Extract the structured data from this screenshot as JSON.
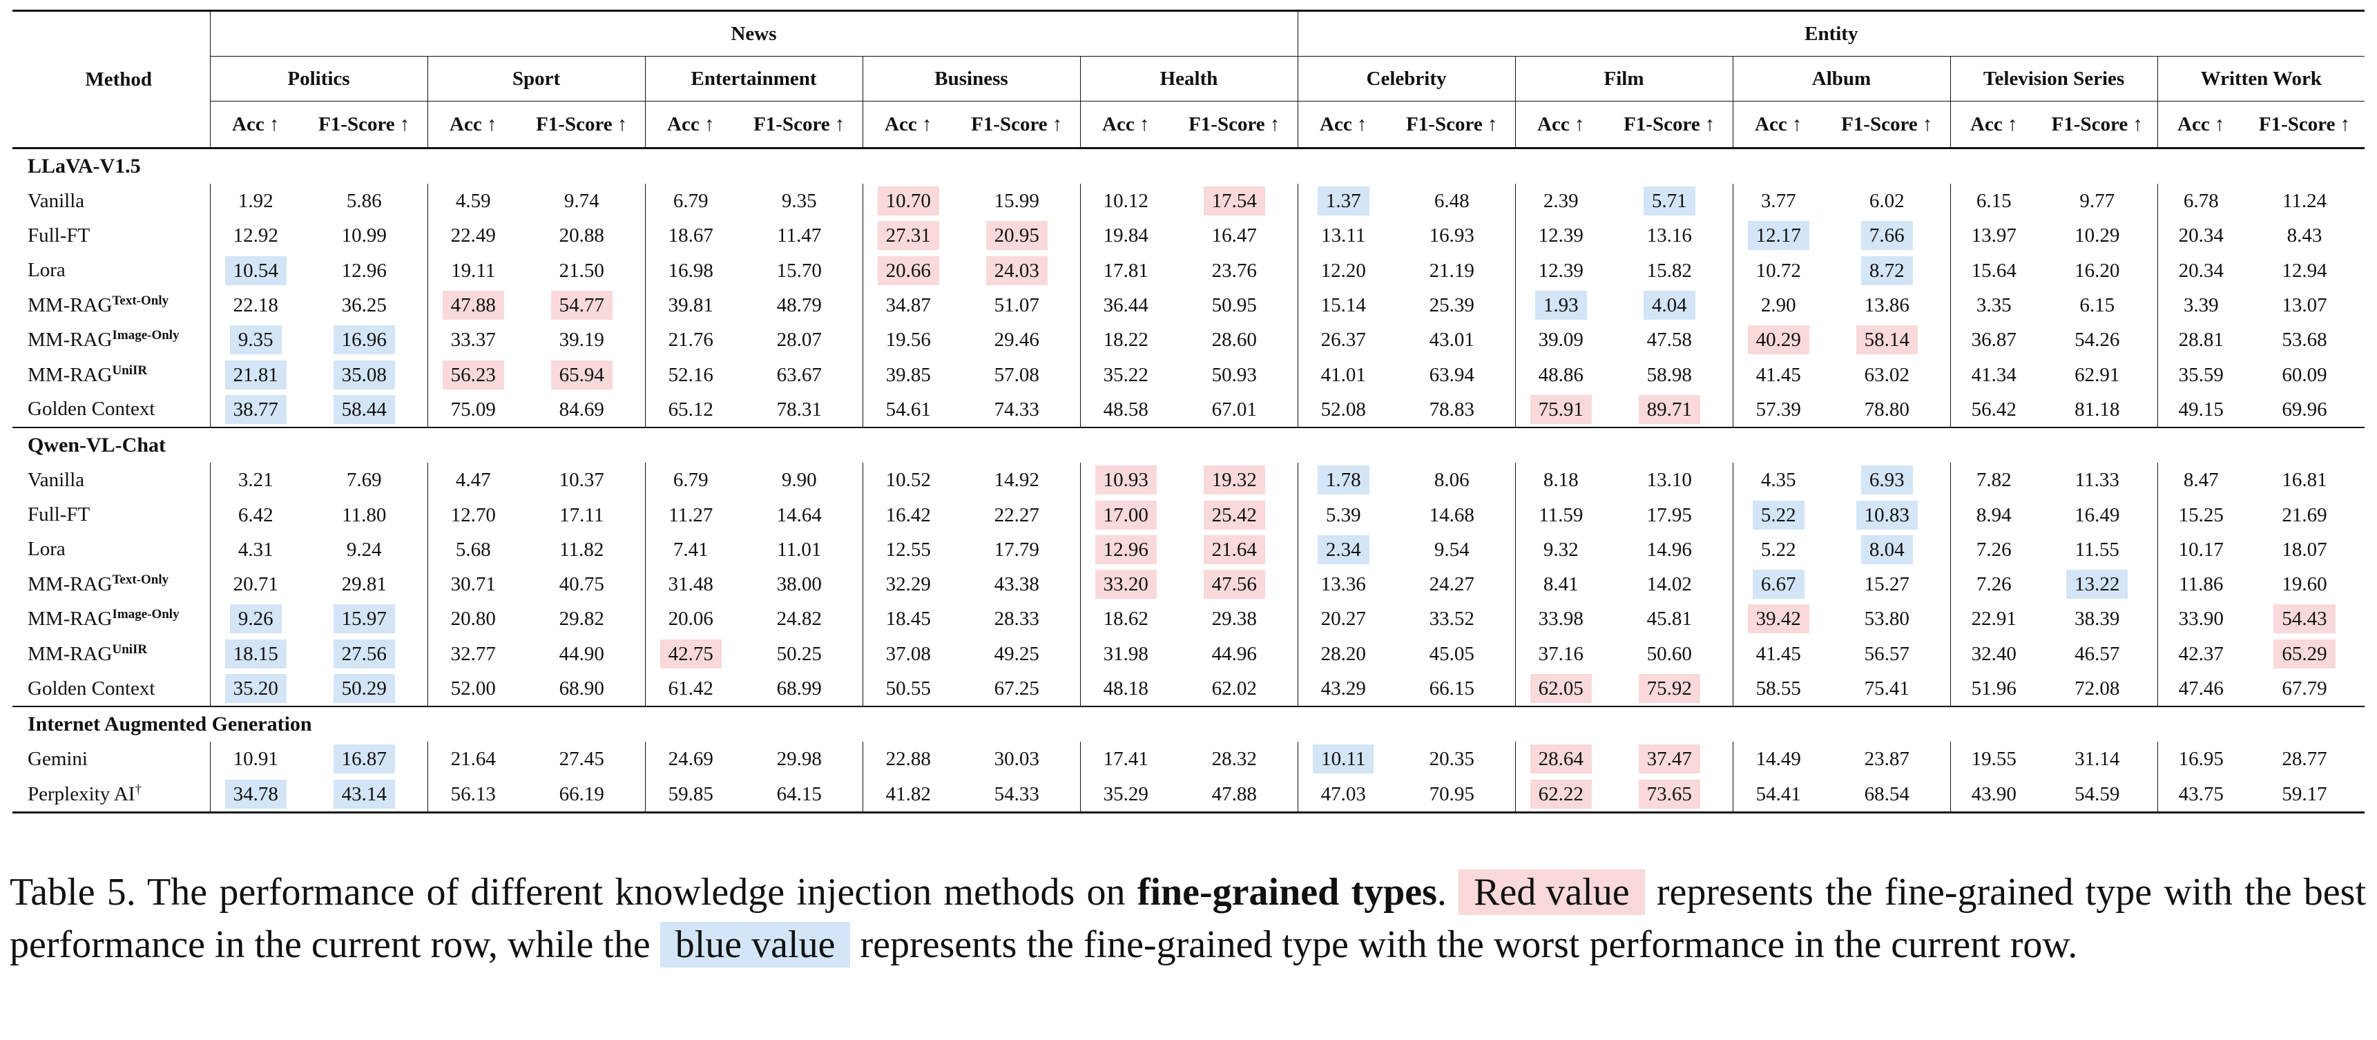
{
  "table": {
    "method_header": "Method",
    "top_groups": [
      {
        "label": "News",
        "span": 5
      },
      {
        "label": "Entity",
        "span": 5
      }
    ],
    "categories": [
      "Politics",
      "Sport",
      "Entertainment",
      "Business",
      "Health",
      "Celebrity",
      "Film",
      "Album",
      "Television Series",
      "Written Work"
    ],
    "metric_headers": [
      "Acc ↑",
      "F1-Score ↑"
    ],
    "highlight_colors": {
      "red": "#f9d9da",
      "blue": "#d3e5f6"
    },
    "sections": [
      {
        "title": "LLaVA-V1.5",
        "rows": [
          {
            "method": "Vanilla",
            "sup": "",
            "values": [
              "1.92",
              "5.86",
              "4.59",
              "9.74",
              "6.79",
              "9.35",
              "10.70",
              "15.99",
              "10.12",
              "17.54",
              "1.37",
              "6.48",
              "2.39",
              "5.71",
              "3.77",
              "6.02",
              "6.15",
              "9.77",
              "6.78",
              "11.24"
            ],
            "hl": [
              "",
              "",
              "",
              "",
              "",
              "",
              "r",
              "",
              "",
              "r",
              "b",
              "",
              "",
              "b",
              "",
              "",
              "",
              "",
              "",
              ""
            ]
          },
          {
            "method": "Full-FT",
            "sup": "",
            "values": [
              "12.92",
              "10.99",
              "22.49",
              "20.88",
              "18.67",
              "11.47",
              "27.31",
              "20.95",
              "19.84",
              "16.47",
              "13.11",
              "16.93",
              "12.39",
              "13.16",
              "12.17",
              "7.66",
              "13.97",
              "10.29",
              "20.34",
              "8.43"
            ],
            "hl": [
              "",
              "",
              "",
              "",
              "",
              "",
              "r",
              "r",
              "",
              "",
              "",
              "",
              "",
              "",
              "b",
              "b",
              "",
              "",
              "",
              ""
            ]
          },
          {
            "method": "Lora",
            "sup": "",
            "values": [
              "10.54",
              "12.96",
              "19.11",
              "21.50",
              "16.98",
              "15.70",
              "20.66",
              "24.03",
              "17.81",
              "23.76",
              "12.20",
              "21.19",
              "12.39",
              "15.82",
              "10.72",
              "8.72",
              "15.64",
              "16.20",
              "20.34",
              "12.94"
            ],
            "hl": [
              "b",
              "",
              "",
              "",
              "",
              "",
              "r",
              "r",
              "",
              "",
              "",
              "",
              "",
              "",
              "",
              "b",
              "",
              "",
              "",
              ""
            ]
          },
          {
            "method": "MM-RAG",
            "sup": "Text-Only",
            "values": [
              "22.18",
              "36.25",
              "47.88",
              "54.77",
              "39.81",
              "48.79",
              "34.87",
              "51.07",
              "36.44",
              "50.95",
              "15.14",
              "25.39",
              "1.93",
              "4.04",
              "2.90",
              "13.86",
              "3.35",
              "6.15",
              "3.39",
              "13.07"
            ],
            "hl": [
              "",
              "",
              "r",
              "r",
              "",
              "",
              "",
              "",
              "",
              "",
              "",
              "",
              "b",
              "b",
              "",
              "",
              "",
              "",
              "",
              ""
            ]
          },
          {
            "method": "MM-RAG",
            "sup": "Image-Only",
            "values": [
              "9.35",
              "16.96",
              "33.37",
              "39.19",
              "21.76",
              "28.07",
              "19.56",
              "29.46",
              "18.22",
              "28.60",
              "26.37",
              "43.01",
              "39.09",
              "47.58",
              "40.29",
              "58.14",
              "36.87",
              "54.26",
              "28.81",
              "53.68"
            ],
            "hl": [
              "b",
              "b",
              "",
              "",
              "",
              "",
              "",
              "",
              "",
              "",
              "",
              "",
              "",
              "",
              "r",
              "r",
              "",
              "",
              "",
              ""
            ]
          },
          {
            "method": "MM-RAG",
            "sup": "UniIR",
            "values": [
              "21.81",
              "35.08",
              "56.23",
              "65.94",
              "52.16",
              "63.67",
              "39.85",
              "57.08",
              "35.22",
              "50.93",
              "41.01",
              "63.94",
              "48.86",
              "58.98",
              "41.45",
              "63.02",
              "41.34",
              "62.91",
              "35.59",
              "60.09"
            ],
            "hl": [
              "b",
              "b",
              "r",
              "r",
              "",
              "",
              "",
              "",
              "",
              "",
              "",
              "",
              "",
              "",
              "",
              "",
              "",
              "",
              "",
              ""
            ]
          },
          {
            "method": "Golden Context",
            "sup": "",
            "values": [
              "38.77",
              "58.44",
              "75.09",
              "84.69",
              "65.12",
              "78.31",
              "54.61",
              "74.33",
              "48.58",
              "67.01",
              "52.08",
              "78.83",
              "75.91",
              "89.71",
              "57.39",
              "78.80",
              "56.42",
              "81.18",
              "49.15",
              "69.96"
            ],
            "hl": [
              "b",
              "b",
              "",
              "",
              "",
              "",
              "",
              "",
              "",
              "",
              "",
              "",
              "r",
              "r",
              "",
              "",
              "",
              "",
              "",
              ""
            ]
          }
        ]
      },
      {
        "title": "Qwen-VL-Chat",
        "rows": [
          {
            "method": "Vanilla",
            "sup": "",
            "values": [
              "3.21",
              "7.69",
              "4.47",
              "10.37",
              "6.79",
              "9.90",
              "10.52",
              "14.92",
              "10.93",
              "19.32",
              "1.78",
              "8.06",
              "8.18",
              "13.10",
              "4.35",
              "6.93",
              "7.82",
              "11.33",
              "8.47",
              "16.81"
            ],
            "hl": [
              "",
              "",
              "",
              "",
              "",
              "",
              "",
              "",
              "r",
              "r",
              "b",
              "",
              "",
              "",
              "",
              "b",
              "",
              "",
              "",
              ""
            ]
          },
          {
            "method": "Full-FT",
            "sup": "",
            "values": [
              "6.42",
              "11.80",
              "12.70",
              "17.11",
              "11.27",
              "14.64",
              "16.42",
              "22.27",
              "17.00",
              "25.42",
              "5.39",
              "14.68",
              "11.59",
              "17.95",
              "5.22",
              "10.83",
              "8.94",
              "16.49",
              "15.25",
              "21.69"
            ],
            "hl": [
              "",
              "",
              "",
              "",
              "",
              "",
              "",
              "",
              "r",
              "r",
              "",
              "",
              "",
              "",
              "b",
              "b",
              "",
              "",
              "",
              ""
            ]
          },
          {
            "method": "Lora",
            "sup": "",
            "values": [
              "4.31",
              "9.24",
              "5.68",
              "11.82",
              "7.41",
              "11.01",
              "12.55",
              "17.79",
              "12.96",
              "21.64",
              "2.34",
              "9.54",
              "9.32",
              "14.96",
              "5.22",
              "8.04",
              "7.26",
              "11.55",
              "10.17",
              "18.07"
            ],
            "hl": [
              "",
              "",
              "",
              "",
              "",
              "",
              "",
              "",
              "r",
              "r",
              "b",
              "",
              "",
              "",
              "",
              "b",
              "",
              "",
              "",
              ""
            ]
          },
          {
            "method": "MM-RAG",
            "sup": "Text-Only",
            "values": [
              "20.71",
              "29.81",
              "30.71",
              "40.75",
              "31.48",
              "38.00",
              "32.29",
              "43.38",
              "33.20",
              "47.56",
              "13.36",
              "24.27",
              "8.41",
              "14.02",
              "6.67",
              "15.27",
              "7.26",
              "13.22",
              "11.86",
              "19.60"
            ],
            "hl": [
              "",
              "",
              "",
              "",
              "",
              "",
              "",
              "",
              "r",
              "r",
              "",
              "",
              "",
              "",
              "b",
              "",
              "",
              "b",
              "",
              ""
            ]
          },
          {
            "method": "MM-RAG",
            "sup": "Image-Only",
            "values": [
              "9.26",
              "15.97",
              "20.80",
              "29.82",
              "20.06",
              "24.82",
              "18.45",
              "28.33",
              "18.62",
              "29.38",
              "20.27",
              "33.52",
              "33.98",
              "45.81",
              "39.42",
              "53.80",
              "22.91",
              "38.39",
              "33.90",
              "54.43"
            ],
            "hl": [
              "b",
              "b",
              "",
              "",
              "",
              "",
              "",
              "",
              "",
              "",
              "",
              "",
              "",
              "",
              "r",
              "",
              "",
              "",
              "",
              "r"
            ]
          },
          {
            "method": "MM-RAG",
            "sup": "UniIR",
            "values": [
              "18.15",
              "27.56",
              "32.77",
              "44.90",
              "42.75",
              "50.25",
              "37.08",
              "49.25",
              "31.98",
              "44.96",
              "28.20",
              "45.05",
              "37.16",
              "50.60",
              "41.45",
              "56.57",
              "32.40",
              "46.57",
              "42.37",
              "65.29"
            ],
            "hl": [
              "b",
              "b",
              "",
              "",
              "r",
              "",
              "",
              "",
              "",
              "",
              "",
              "",
              "",
              "",
              "",
              "",
              "",
              "",
              "",
              "r"
            ]
          },
          {
            "method": "Golden Context",
            "sup": "",
            "values": [
              "35.20",
              "50.29",
              "52.00",
              "68.90",
              "61.42",
              "68.99",
              "50.55",
              "67.25",
              "48.18",
              "62.02",
              "43.29",
              "66.15",
              "62.05",
              "75.92",
              "58.55",
              "75.41",
              "51.96",
              "72.08",
              "47.46",
              "67.79"
            ],
            "hl": [
              "b",
              "b",
              "",
              "",
              "",
              "",
              "",
              "",
              "",
              "",
              "",
              "",
              "r",
              "r",
              "",
              "",
              "",
              "",
              "",
              ""
            ]
          }
        ]
      },
      {
        "title": "Internet Augmented Generation",
        "rows": [
          {
            "method": "Gemini",
            "sup": "",
            "values": [
              "10.91",
              "16.87",
              "21.64",
              "27.45",
              "24.69",
              "29.98",
              "22.88",
              "30.03",
              "17.41",
              "28.32",
              "10.11",
              "20.35",
              "28.64",
              "37.47",
              "14.49",
              "23.87",
              "19.55",
              "31.14",
              "16.95",
              "28.77"
            ],
            "hl": [
              "",
              "b",
              "",
              "",
              "",
              "",
              "",
              "",
              "",
              "",
              "b",
              "",
              "r",
              "r",
              "",
              "",
              "",
              "",
              "",
              ""
            ]
          },
          {
            "method": "Perplexity AI",
            "sup": "†",
            "values": [
              "34.78",
              "43.14",
              "56.13",
              "66.19",
              "59.85",
              "64.15",
              "41.82",
              "54.33",
              "35.29",
              "47.88",
              "47.03",
              "70.95",
              "62.22",
              "73.65",
              "54.41",
              "68.54",
              "43.90",
              "54.59",
              "43.75",
              "59.17"
            ],
            "hl": [
              "b",
              "b",
              "",
              "",
              "",
              "",
              "",
              "",
              "",
              "",
              "",
              "",
              "r",
              "r",
              "",
              "",
              "",
              "",
              "",
              ""
            ]
          }
        ]
      }
    ]
  },
  "caption": {
    "label": "Table 5.",
    "intro": "The performance of different knowledge injection methods on",
    "bold_phrase": "fine-grained types",
    "after_bold": ".",
    "red_label": "Red value",
    "red_text": "represents the fine-grained type with the best performance in the current row, while the",
    "blue_label": "blue value",
    "blue_text": "represents the fine-grained type with the worst performance in the current row."
  }
}
